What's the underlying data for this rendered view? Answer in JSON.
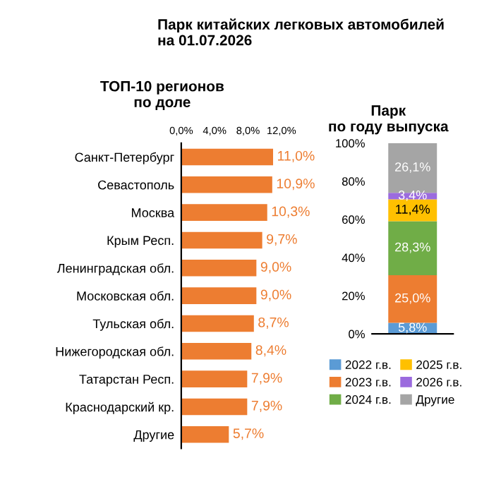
{
  "chart_data": [
    {
      "type": "bar",
      "title": "Парк китайских легковых автомобилей\nна 01.07.2026",
      "subtitle": "ТОП-10 регионов\nпо доле",
      "orientation": "horizontal",
      "categories": [
        "Санкт-Петербург",
        "Севастополь",
        "Москва",
        "Крым Респ.",
        "Ленинградская обл.",
        "Московская обл.",
        "Тульская обл.",
        "Нижегородская обл.",
        "Татарстан Респ.",
        "Краснодарский кр.",
        "Другие"
      ],
      "values": [
        11.0,
        10.9,
        10.3,
        9.7,
        9.0,
        9.0,
        8.7,
        8.4,
        7.9,
        7.9,
        5.7
      ],
      "value_labels": [
        "11,0%",
        "10,9%",
        "10,3%",
        "9,7%",
        "9,0%",
        "9,0%",
        "8,7%",
        "8,4%",
        "7,9%",
        "7,9%",
        "5,7%"
      ],
      "color": "#ed7d31",
      "xlim": [
        0,
        12
      ],
      "xticks": [
        {
          "value": 0,
          "label": "0,0%"
        },
        {
          "value": 4,
          "label": "4,0%"
        },
        {
          "value": 8,
          "label": "8,0%"
        },
        {
          "value": 12,
          "label": "12,0%"
        }
      ],
      "grid": false,
      "legend": false
    },
    {
      "type": "bar",
      "title": "Парк\nпо году выпуска",
      "stacked": true,
      "categories": [
        null
      ],
      "series": [
        {
          "name": "2022 г.в.",
          "color": "#5b9bd5",
          "values": [
            5.8
          ],
          "value_labels": [
            "5,8%"
          ]
        },
        {
          "name": "2023 г.в.",
          "color": "#ed7d31",
          "values": [
            25.0
          ],
          "value_labels": [
            "25,0%"
          ]
        },
        {
          "name": "2024 г.в.",
          "color": "#70ad47",
          "values": [
            28.3
          ],
          "value_labels": [
            "28,3%"
          ]
        },
        {
          "name": "2025 г.в.",
          "color": "#ffc000",
          "values": [
            11.4
          ],
          "value_labels": [
            "11,4%"
          ]
        },
        {
          "name": "2026 г.в.",
          "color": "#9b6bde",
          "values": [
            3.4
          ],
          "value_labels": [
            "3,4%"
          ]
        },
        {
          "name": "Другие",
          "color": "#a5a5a5",
          "values": [
            26.1
          ],
          "value_labels": [
            "26,1%"
          ]
        }
      ],
      "ylim": [
        0,
        100
      ],
      "yticks": [
        {
          "value": 0,
          "label": "0%"
        },
        {
          "value": 20,
          "label": "20%"
        },
        {
          "value": 40,
          "label": "40%"
        },
        {
          "value": 60,
          "label": "60%"
        },
        {
          "value": 80,
          "label": "80%"
        },
        {
          "value": 100,
          "label": "100%"
        }
      ],
      "grid": false,
      "legend": "bottom"
    }
  ]
}
